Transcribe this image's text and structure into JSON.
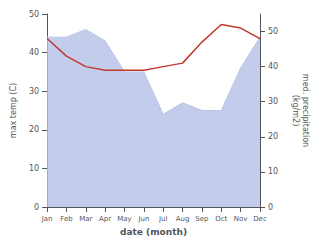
{
  "chart_data": {
    "type": "line",
    "xlabel": "date (month)",
    "ylabel": "max temp (C)",
    "y2label": "med. precipitation\n(kg/m2)",
    "categories": [
      "Jan",
      "Feb",
      "Mar",
      "Apr",
      "May",
      "Jun",
      "Jul",
      "Aug",
      "Sep",
      "Oct",
      "Nov",
      "Dec"
    ],
    "series": [
      {
        "type": "area",
        "color": "#b8c4e8",
        "values": [
          44,
          44,
          46,
          43,
          35,
          35,
          24,
          27,
          25,
          25,
          36,
          44
        ]
      },
      {
        "type": "line",
        "color": "#c0392b",
        "axis": "y2",
        "values": [
          48,
          43,
          40,
          39,
          39,
          39,
          40,
          41,
          47,
          52,
          51,
          48
        ]
      }
    ],
    "ylim": [
      0,
      50
    ],
    "yticks": [
      0,
      10,
      20,
      30,
      40,
      50
    ],
    "y2lim": [
      0,
      55
    ],
    "y2ticks": [
      0,
      10,
      20,
      30,
      40,
      50
    ],
    "grid": false
  }
}
